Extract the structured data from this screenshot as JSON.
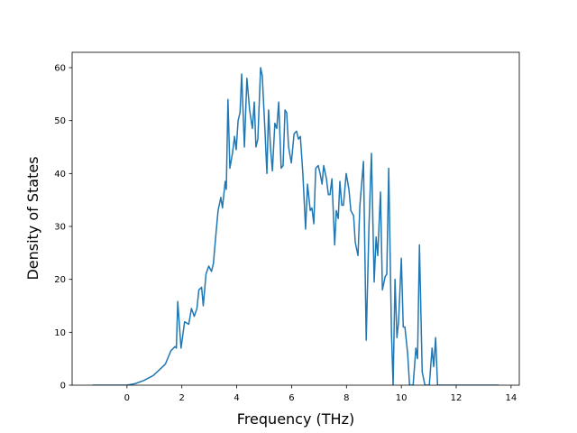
{
  "chart_data": {
    "type": "line",
    "xlabel": "Frequency (THz)",
    "ylabel": "Density of States",
    "color": "#1f77b4",
    "xlim": [
      -2.0,
      14.3
    ],
    "ylim": [
      0,
      62.9
    ],
    "xticks": [
      0,
      2,
      4,
      6,
      8,
      10,
      12,
      14
    ],
    "yticks": [
      0,
      10,
      20,
      30,
      40,
      50,
      60
    ],
    "x": [
      -1.25,
      0,
      0.3,
      0.62,
      0.95,
      1.2,
      1.4,
      1.6,
      1.75,
      1.8,
      1.85,
      1.97,
      2.1,
      2.25,
      2.35,
      2.45,
      2.55,
      2.62,
      2.72,
      2.78,
      2.88,
      2.98,
      3.08,
      3.15,
      3.25,
      3.32,
      3.42,
      3.48,
      3.58,
      3.62,
      3.68,
      3.75,
      3.85,
      3.92,
      3.98,
      4.05,
      4.12,
      4.18,
      4.28,
      4.37,
      4.47,
      4.57,
      4.64,
      4.7,
      4.77,
      4.87,
      4.93,
      5.03,
      5.1,
      5.16,
      5.23,
      5.3,
      5.39,
      5.46,
      5.53,
      5.62,
      5.69,
      5.76,
      5.82,
      5.89,
      5.99,
      6.09,
      6.18,
      6.25,
      6.32,
      6.41,
      6.51,
      6.58,
      6.68,
      6.74,
      6.81,
      6.88,
      6.97,
      7.04,
      7.11,
      7.17,
      7.27,
      7.34,
      7.4,
      7.47,
      7.57,
      7.63,
      7.7,
      7.76,
      7.83,
      7.89,
      7.99,
      8.09,
      8.16,
      8.26,
      8.32,
      8.42,
      8.49,
      8.62,
      8.72,
      8.82,
      8.91,
      9.01,
      9.08,
      9.14,
      9.24,
      9.31,
      9.41,
      9.47,
      9.54,
      9.64,
      9.7,
      9.77,
      9.84,
      9.9,
      10,
      10.07,
      10.13,
      10.23,
      10.3,
      10.43,
      10.53,
      10.59,
      10.66,
      10.76,
      10.86,
      11.02,
      11.12,
      11.18,
      11.25,
      11.32,
      13.55
    ],
    "values": [
      0,
      0,
      0.3,
      0.9,
      1.8,
      3,
      4,
      6.5,
      7.3,
      7,
      15.8,
      7,
      12,
      11.5,
      14.5,
      13,
      14.5,
      18,
      18.5,
      15,
      21,
      22.5,
      21.5,
      23,
      29,
      33,
      35.5,
      33.5,
      38.5,
      37,
      54,
      41,
      44,
      47,
      44.5,
      50,
      51.5,
      58.8,
      45,
      58,
      52,
      48.5,
      53.5,
      45,
      46.5,
      60,
      58.5,
      48,
      40,
      52,
      45,
      40.5,
      49.5,
      48.5,
      53.5,
      41,
      41.5,
      52,
      51.5,
      45,
      42,
      47.5,
      48,
      46.5,
      47,
      40,
      29.5,
      38,
      33,
      33.5,
      30.5,
      41,
      41.5,
      40,
      38,
      41.5,
      39,
      36,
      36,
      39,
      26.5,
      33,
      31.5,
      38.5,
      34,
      34,
      40,
      37,
      33,
      32,
      27,
      24.5,
      34,
      42.3,
      8.5,
      30,
      43.8,
      19.5,
      28,
      24.5,
      36.5,
      18,
      20.5,
      21,
      41,
      10,
      0,
      20,
      9,
      12,
      24,
      11,
      11,
      6,
      0,
      0,
      7,
      5,
      26.5,
      2.5,
      0,
      0,
      7,
      3.5,
      9,
      0,
      0
    ]
  }
}
